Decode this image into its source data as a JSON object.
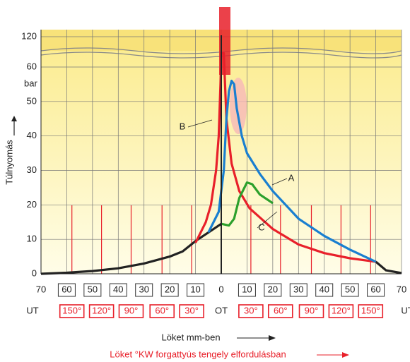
{
  "chart_data": {
    "type": "line",
    "y_label": "Túlnyomás",
    "y_unit": "bar",
    "x_label": "Löket mm-ben",
    "x2_label": "Löket °KW forgattyús tengely elfordulásban",
    "annotations": [
      "A",
      "B",
      "C"
    ],
    "xlim": [
      -70,
      70
    ],
    "xticks": [
      {
        "value": -70,
        "label": "70"
      },
      {
        "value": -60,
        "label": "60"
      },
      {
        "value": -50,
        "label": "50"
      },
      {
        "value": -40,
        "label": "40"
      },
      {
        "value": -30,
        "label": "30"
      },
      {
        "value": -20,
        "label": "20"
      },
      {
        "value": -10,
        "label": "10"
      },
      0,
      10,
      20,
      30,
      40,
      50,
      60,
      70
    ],
    "crank_ticks": [
      {
        "value": -70,
        "label": "UT"
      },
      {
        "value": -58,
        "label": "150°"
      },
      {
        "value": -46.5,
        "label": "120°"
      },
      {
        "value": -35,
        "label": "90°"
      },
      {
        "value": -23,
        "label": "60°"
      },
      {
        "value": -11.5,
        "label": "30°"
      },
      {
        "value": 0,
        "label": "OT"
      },
      {
        "value": 11.5,
        "label": "30°"
      },
      {
        "value": 23,
        "label": "60°"
      },
      {
        "value": 35,
        "label": "90°"
      },
      {
        "value": 46.5,
        "label": "120°"
      },
      {
        "value": 58,
        "label": "150°"
      },
      {
        "value": 70,
        "label": "UT"
      }
    ],
    "ylim": [
      0,
      122
    ],
    "ybreak": [
      64,
      116
    ],
    "yticks": [
      0,
      10,
      20,
      30,
      40,
      50,
      60,
      120
    ],
    "grid": true,
    "series": [
      {
        "color": "#222222",
        "x": [
          -70,
          -60,
          -50,
          -40,
          -30,
          -20,
          -15,
          -10,
          -5,
          0,
          null,
          60,
          64,
          70
        ],
        "values": [
          0,
          0.3,
          0.8,
          1.6,
          3,
          5,
          6.5,
          9.5,
          12,
          14.5,
          null,
          3.5,
          1,
          0.2
        ]
      },
      {
        "name": "B",
        "color": "#e8202a",
        "x": [
          -10,
          -6,
          -4,
          -2,
          -1,
          -0.3,
          0,
          1,
          2,
          4,
          7,
          11,
          20,
          30,
          40,
          50,
          60
        ],
        "values": [
          9,
          15,
          20,
          30,
          40,
          55,
          64,
          64,
          45,
          32,
          24,
          19,
          13,
          8.5,
          6,
          4.5,
          3.5
        ]
      },
      {
        "name": "A",
        "color": "#1a7fd0",
        "x": [
          -5,
          -1,
          1,
          2,
          3,
          4,
          5,
          6,
          8,
          10,
          15,
          20,
          30,
          40,
          50,
          60
        ],
        "values": [
          12,
          18,
          30,
          45,
          53,
          56,
          55,
          48,
          40,
          35,
          29,
          24,
          16,
          11,
          7,
          3.5
        ]
      },
      {
        "name": "C",
        "color": "#2ca02c",
        "x": [
          0,
          3,
          5,
          7,
          10,
          12,
          15,
          20
        ],
        "values": [
          14.5,
          14,
          16,
          22,
          26.5,
          26,
          23,
          20.5
        ]
      }
    ]
  }
}
